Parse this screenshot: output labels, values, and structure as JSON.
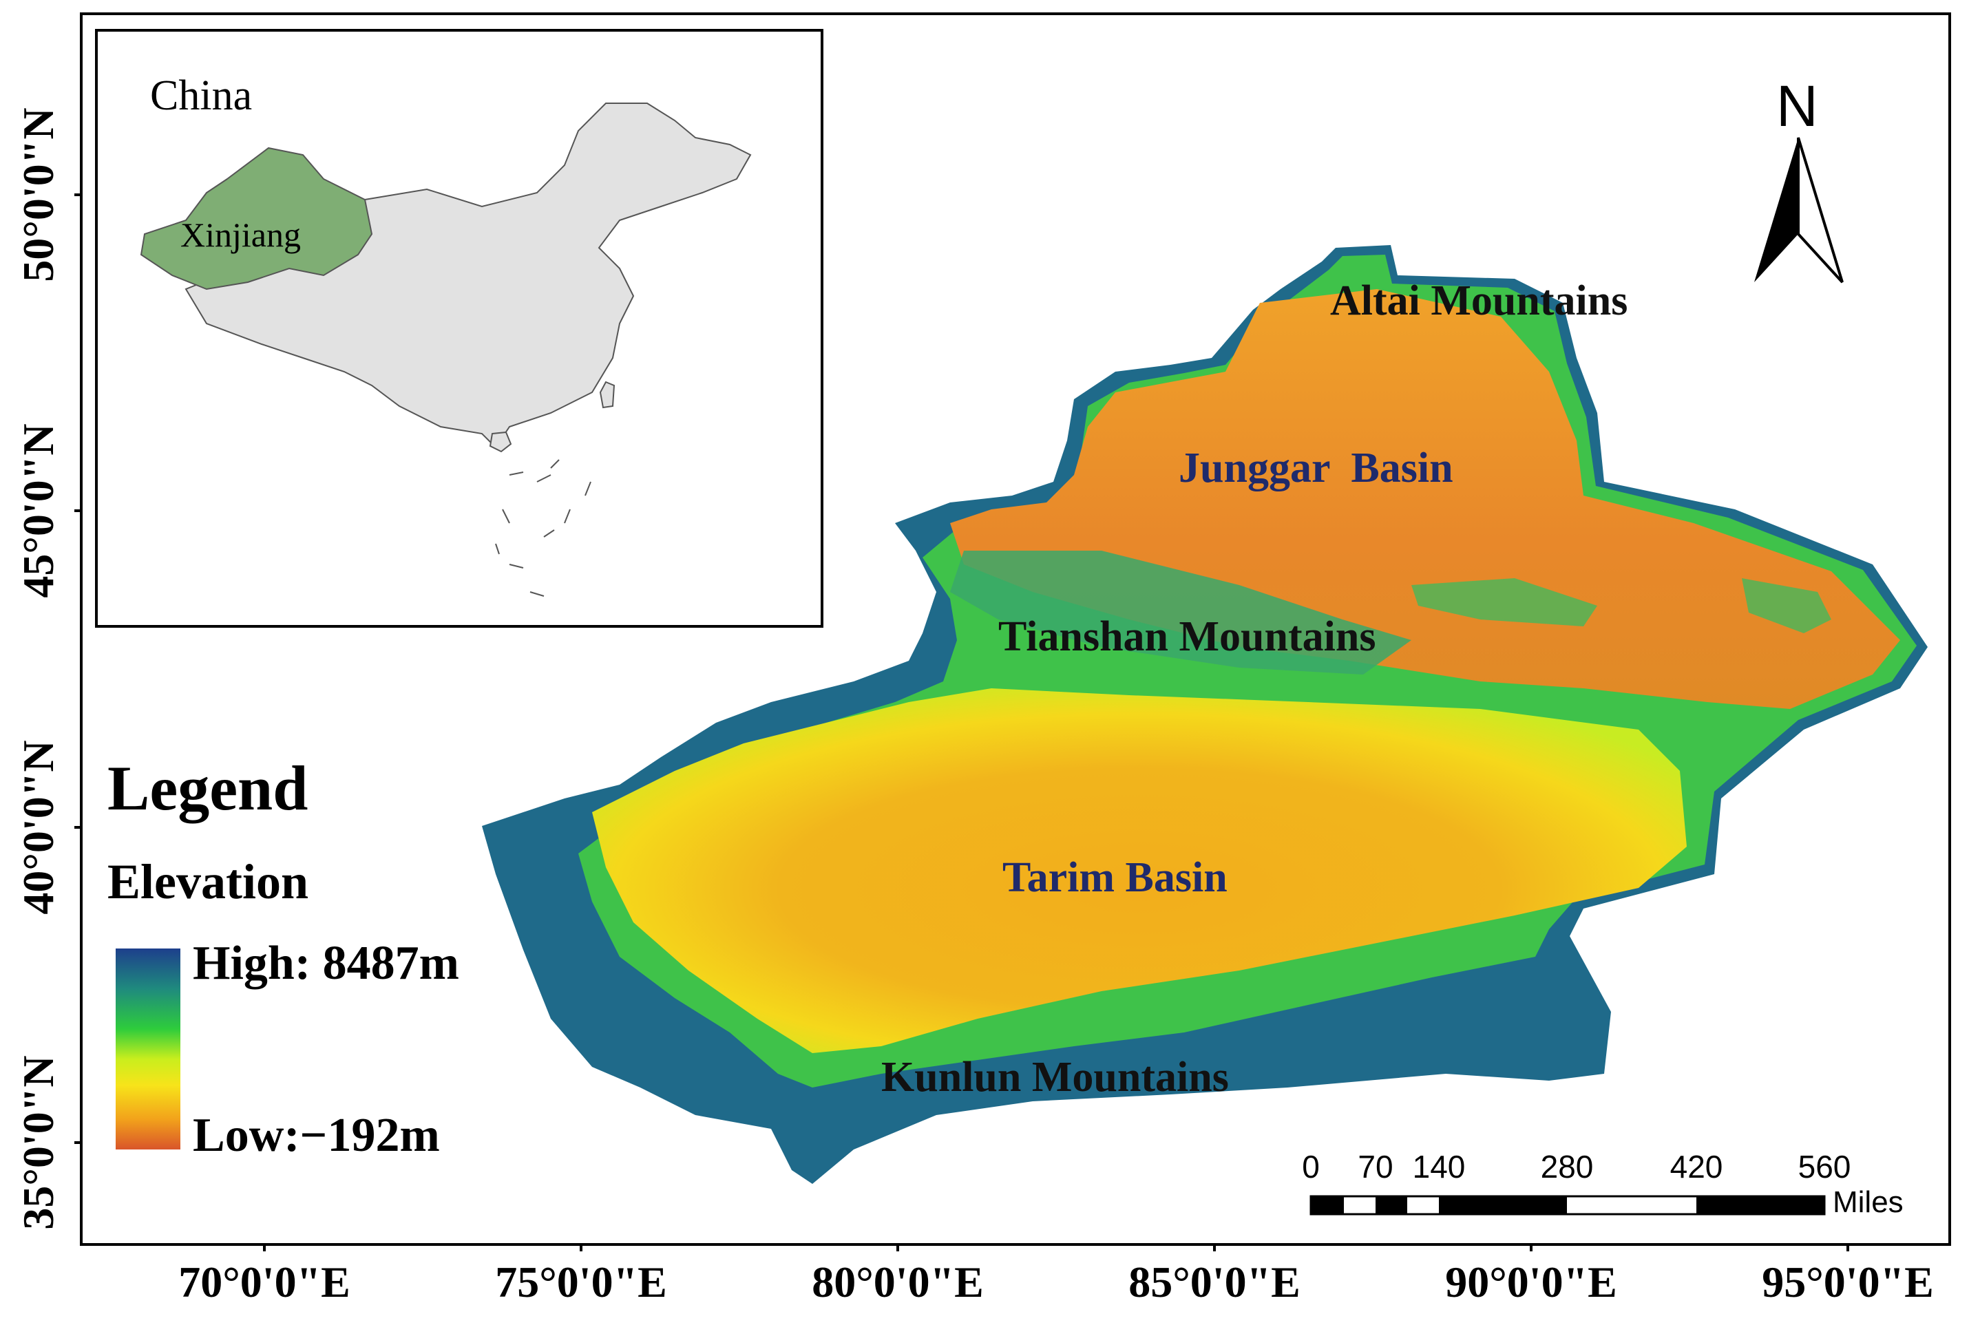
{
  "inset": {
    "title": "China",
    "region_label": "Xinjiang",
    "china_fill": "#e2e2e2",
    "xinjiang_fill": "#7fae74"
  },
  "north_arrow": {
    "label": "N"
  },
  "region_labels": {
    "altai": "Altai Mountains",
    "junggar": "Junggar  Basin",
    "tianshan": "Tianshan Mountains",
    "tarim": "Tarim Basin",
    "kunlun": "Kunlun Mountains"
  },
  "label_colors": {
    "mountains": "#111111",
    "basins": "#1f2a6b"
  },
  "legend": {
    "title": "Legend",
    "subtitle": "Elevation",
    "high_label": "High: 8487m",
    "low_label": "Low:−192m",
    "ramp_colors": [
      "#1d3f8c",
      "#1f8a7e",
      "#2ecc3c",
      "#c9ee1d",
      "#f7e41a",
      "#f2a21b",
      "#d9552a"
    ]
  },
  "axes": {
    "latitude_labels": [
      "50°0'0\"N",
      "45°0'0\"N",
      "40°0'0\"N",
      "35°0'0\"N"
    ],
    "longitude_labels": [
      "70°0'0\"E",
      "75°0'0\"E",
      "80°0'0\"E",
      "85°0'0\"E",
      "90°0'0\"E",
      "95°0'0\"E"
    ]
  },
  "scale_bar": {
    "ticks": [
      "0",
      "70",
      "140",
      "280",
      "420",
      "560"
    ],
    "unit": "Miles"
  }
}
